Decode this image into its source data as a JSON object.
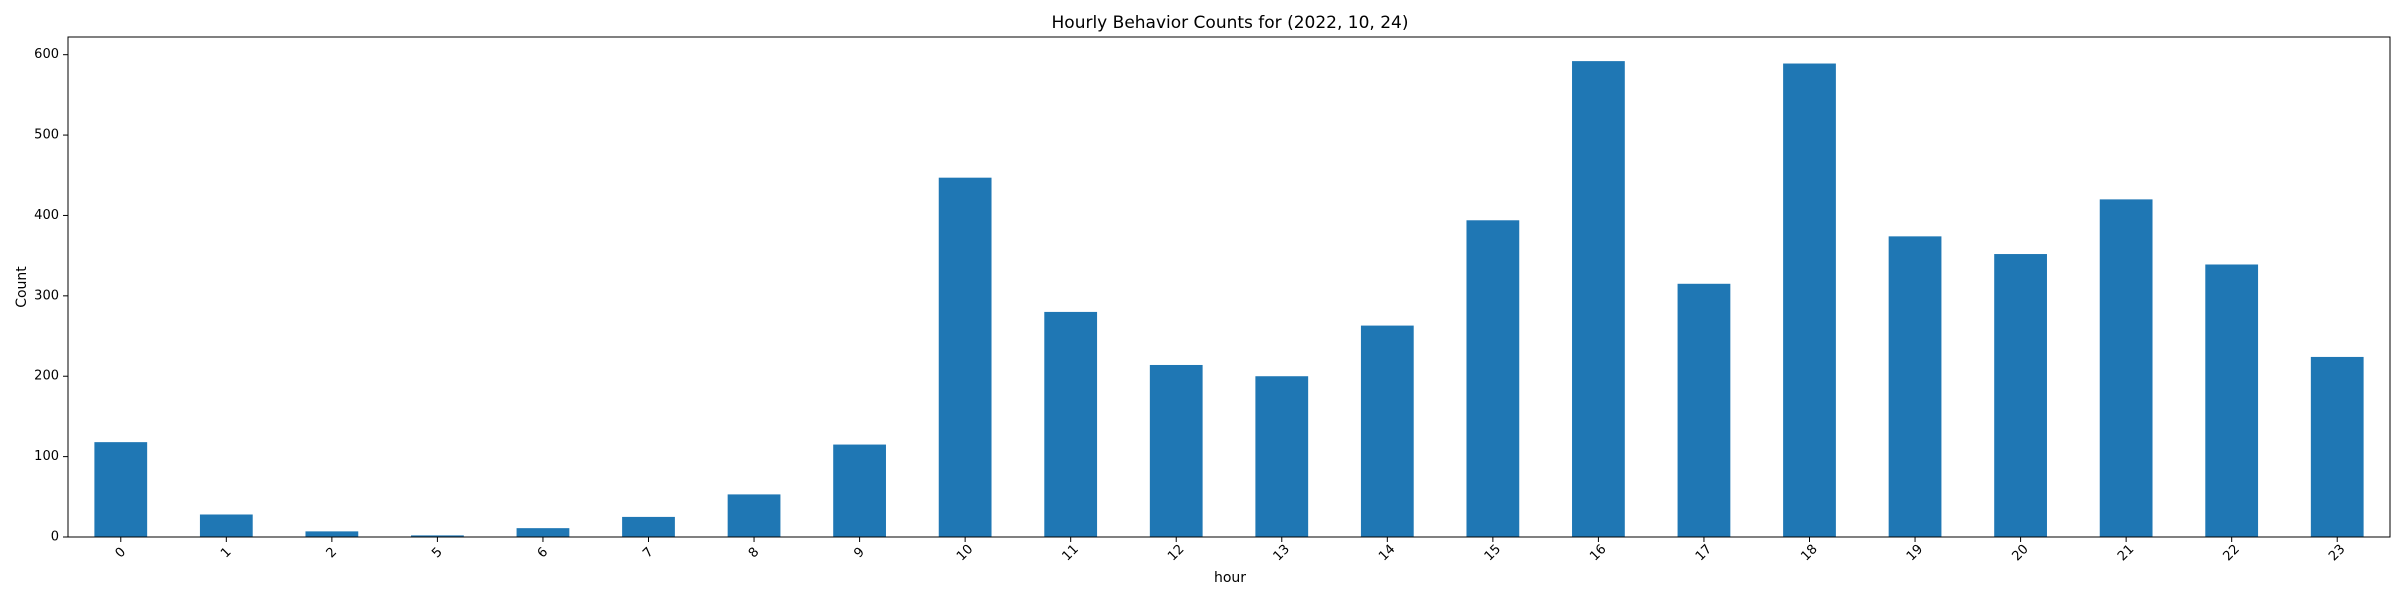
{
  "chart_data": {
    "type": "bar",
    "title": "Hourly Behavior Counts for (2022, 10, 24)",
    "xlabel": "hour",
    "ylabel": "Count",
    "categories": [
      "0",
      "1",
      "2",
      "5",
      "6",
      "7",
      "8",
      "9",
      "10",
      "11",
      "12",
      "13",
      "14",
      "15",
      "16",
      "17",
      "18",
      "19",
      "20",
      "21",
      "22",
      "23"
    ],
    "values": [
      118,
      28,
      7,
      2,
      11,
      25,
      53,
      115,
      447,
      280,
      214,
      200,
      263,
      394,
      592,
      315,
      589,
      374,
      352,
      420,
      339,
      224
    ],
    "ylim": [
      0,
      622
    ],
    "yticks": [
      0,
      100,
      200,
      300,
      400,
      500,
      600
    ],
    "grid": false,
    "legend": "none",
    "bar_color": "#1f77b4"
  }
}
